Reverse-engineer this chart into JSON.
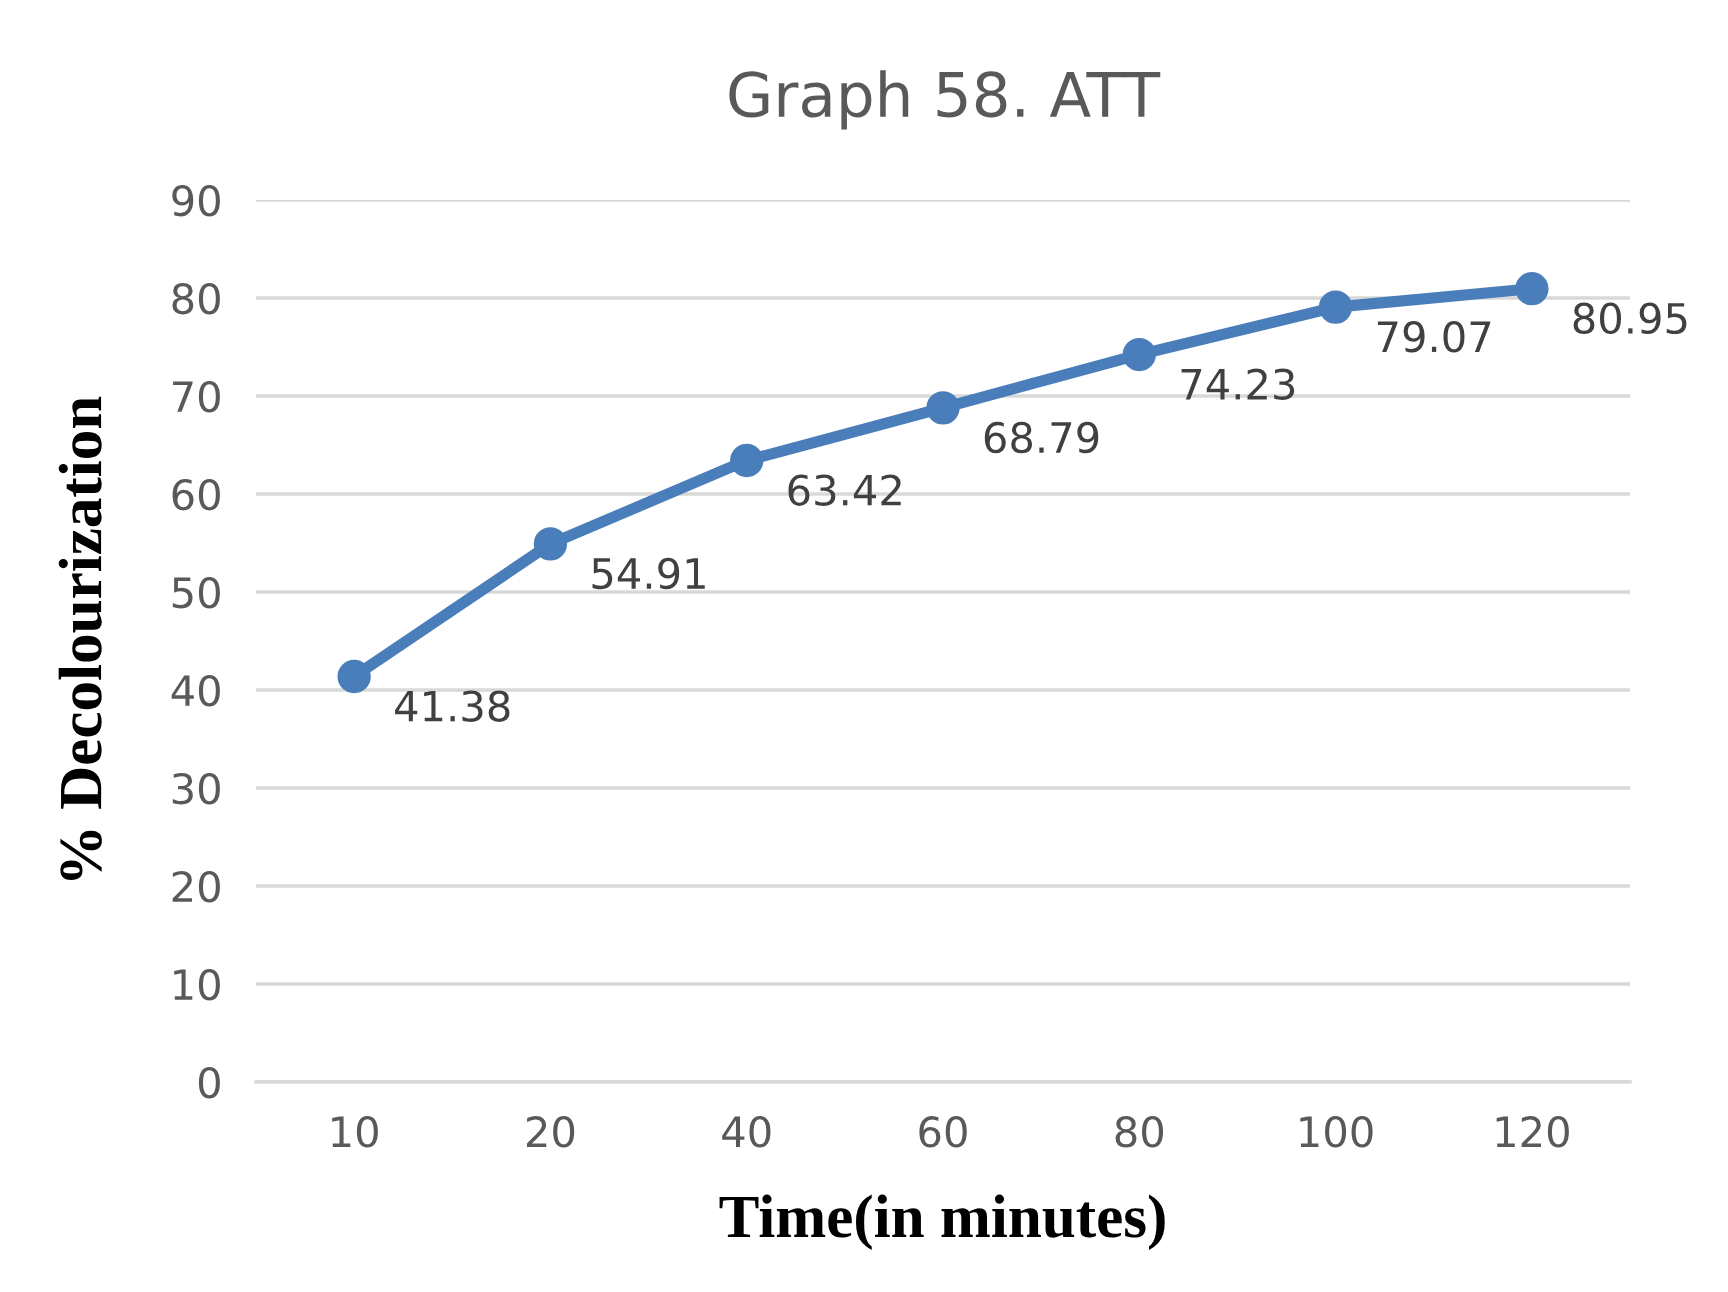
{
  "chart_data": {
    "type": "line",
    "title": "Graph 58. ATT",
    "xlabel": "Time(in minutes)",
    "ylabel": "% Decolourization",
    "categories": [
      "10",
      "20",
      "40",
      "60",
      "80",
      "100",
      "120"
    ],
    "series": [
      {
        "color": "#4a7ebb",
        "values": [
          41.38,
          54.91,
          63.42,
          68.79,
          74.23,
          79.07,
          80.95
        ]
      }
    ],
    "ylim": [
      0,
      90
    ],
    "yticks": [
      0,
      10,
      20,
      30,
      40,
      50,
      60,
      70,
      80,
      90
    ],
    "grid": "y",
    "marker": "circle",
    "line_style": "solid",
    "data_labels": true,
    "legend": false
  }
}
